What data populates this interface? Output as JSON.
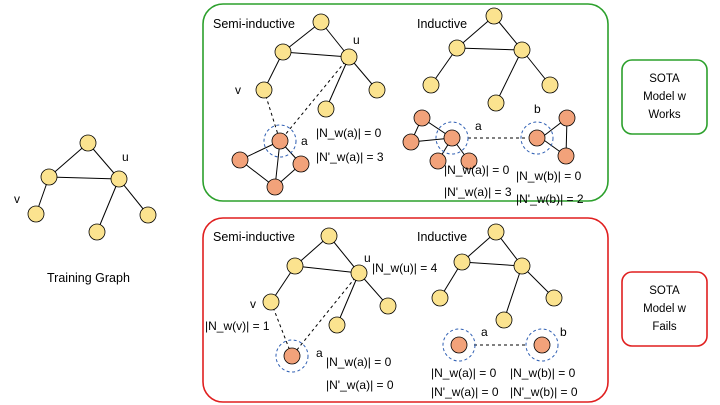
{
  "training": {
    "caption": "Training Graph",
    "label_u": "u",
    "label_v": "v"
  },
  "works_panel": {
    "border_color": "#2ca02c",
    "semi_title": "Semi-inductive",
    "ind_title": "Inductive",
    "semi": {
      "label_v": "v",
      "label_u": "u",
      "label_a": "a",
      "ann1": "|N_w(a)| = 0",
      "ann2": "|N'_w(a)| = 3"
    },
    "ind": {
      "label_a": "a",
      "label_b": "b",
      "ann_a1": "|N_w(a)| = 0",
      "ann_a2": "|N'_w(a)| = 3",
      "ann_b1": "|N_w(b)| = 0",
      "ann_b2": "|N'_w(b)| = 2"
    }
  },
  "fails_panel": {
    "border_color": "#e01f1f",
    "semi_title": "Semi-inductive",
    "ind_title": "Inductive",
    "semi": {
      "label_v": "v",
      "label_u": "u",
      "label_a": "a",
      "ann_u": "|N_w(u)| = 4",
      "ann_v": "|N_w(v)| = 1",
      "ann1": "|N_w(a)| = 0",
      "ann2": "|N'_w(a)| = 0"
    },
    "ind": {
      "label_a": "a",
      "label_b": "b",
      "ann_a1": "|N_w(a)| = 0",
      "ann_a2": "|N'_w(a)| = 0",
      "ann_b1": "|N_w(b)| = 0",
      "ann_b2": "|N'_w(b)| = 0"
    }
  },
  "side_works": {
    "border_color": "#2ca02c",
    "line1": "SOTA",
    "line2": "Model w",
    "line3": "Works"
  },
  "side_fails": {
    "border_color": "#e01f1f",
    "line1": "SOTA",
    "line2": "Model w",
    "line3": "Fails"
  },
  "colors": {
    "yellow_node": "#fbe38f",
    "orange_node": "#f2a27a",
    "ring": "#2f5fb3"
  }
}
